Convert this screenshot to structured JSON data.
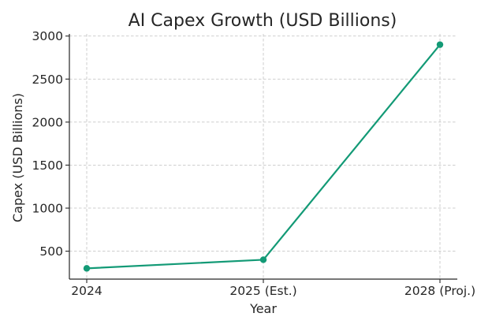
{
  "chart_data": {
    "type": "line",
    "title": "AI Capex Growth (USD Billions)",
    "xlabel": "Year",
    "ylabel": "Capex (USD Billions)",
    "categories": [
      "2024",
      "2025 (Est.)",
      "2028 (Proj.)"
    ],
    "values": [
      300,
      400,
      2900
    ],
    "yticks": [
      500,
      1000,
      1500,
      2000,
      2500,
      3000
    ],
    "ylim": [
      175,
      3025
    ],
    "grid": true,
    "line_color": "#139a76",
    "marker": "circle"
  }
}
